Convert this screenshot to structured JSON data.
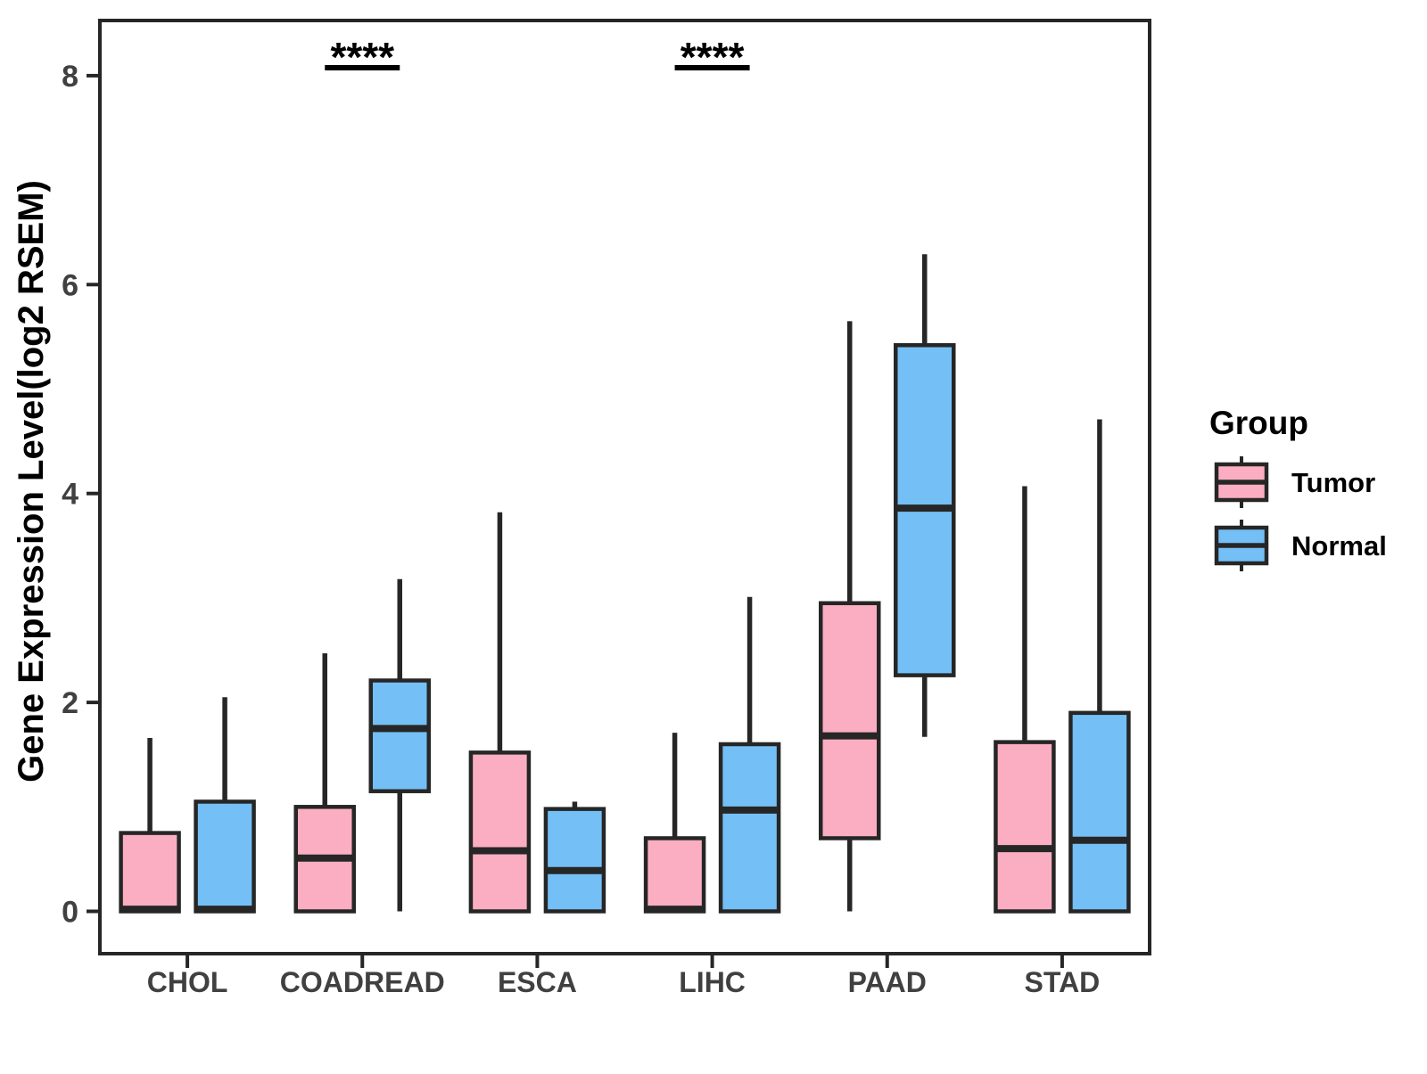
{
  "legend": {
    "title": "Group",
    "entries": [
      {
        "label": "Tumor",
        "color": "#FBAEC1"
      },
      {
        "label": "Normal",
        "color": "#74BFF5"
      }
    ]
  },
  "y_axis": {
    "label": "Gene Expression Level(log2 RSEM)",
    "tick_labels": [
      "0",
      "2",
      "4",
      "6",
      "8"
    ]
  },
  "x_axis": {
    "tick_labels": [
      "CHOL",
      "COADREAD",
      "ESCA",
      "LIHC",
      "PAAD",
      "STAD"
    ]
  },
  "chart_data": {
    "type": "boxplot",
    "title": "",
    "xlabel": "",
    "ylabel": "Gene Expression Level(log2 RSEM)",
    "ylim": [
      -0.45,
      8.55
    ],
    "yticks": [
      0,
      2,
      4,
      6,
      8
    ],
    "grid": false,
    "legend_position": "right",
    "categories": [
      "CHOL",
      "COADREAD",
      "ESCA",
      "LIHC",
      "PAAD",
      "STAD"
    ],
    "series": [
      {
        "name": "Tumor",
        "color": "#FBAEC1",
        "boxes": [
          {
            "min": 0,
            "q1": 0,
            "median": 0.02,
            "q3": 0.75,
            "max": 1.66
          },
          {
            "min": 0,
            "q1": 0,
            "median": 0.51,
            "q3": 1.0,
            "max": 2.47
          },
          {
            "min": 0,
            "q1": 0,
            "median": 0.58,
            "q3": 1.52,
            "max": 3.82
          },
          {
            "min": 0,
            "q1": 0,
            "median": 0.02,
            "q3": 0.7,
            "max": 1.71
          },
          {
            "min": 0,
            "q1": 0.7,
            "median": 1.68,
            "q3": 2.95,
            "max": 5.65
          },
          {
            "min": 0,
            "q1": 0,
            "median": 0.6,
            "q3": 1.62,
            "max": 4.07
          }
        ]
      },
      {
        "name": "Normal",
        "color": "#74BFF5",
        "boxes": [
          {
            "min": 0,
            "q1": 0,
            "median": 0.02,
            "q3": 1.05,
            "max": 2.05
          },
          {
            "min": 0,
            "q1": 1.15,
            "median": 1.75,
            "q3": 2.21,
            "max": 3.18
          },
          {
            "min": 0,
            "q1": 0,
            "median": 0.39,
            "q3": 0.98,
            "max": 1.05
          },
          {
            "min": 0,
            "q1": 0,
            "median": 0.97,
            "q3": 1.6,
            "max": 3.01
          },
          {
            "min": 1.67,
            "q1": 2.26,
            "median": 3.86,
            "q3": 5.42,
            "max": 6.29
          },
          {
            "min": 0,
            "q1": 0,
            "median": 0.68,
            "q3": 1.9,
            "max": 4.71
          }
        ]
      }
    ],
    "annotations": [
      {
        "category": "COADREAD",
        "label": "****"
      },
      {
        "category": "LIHC",
        "label": "****"
      }
    ]
  }
}
